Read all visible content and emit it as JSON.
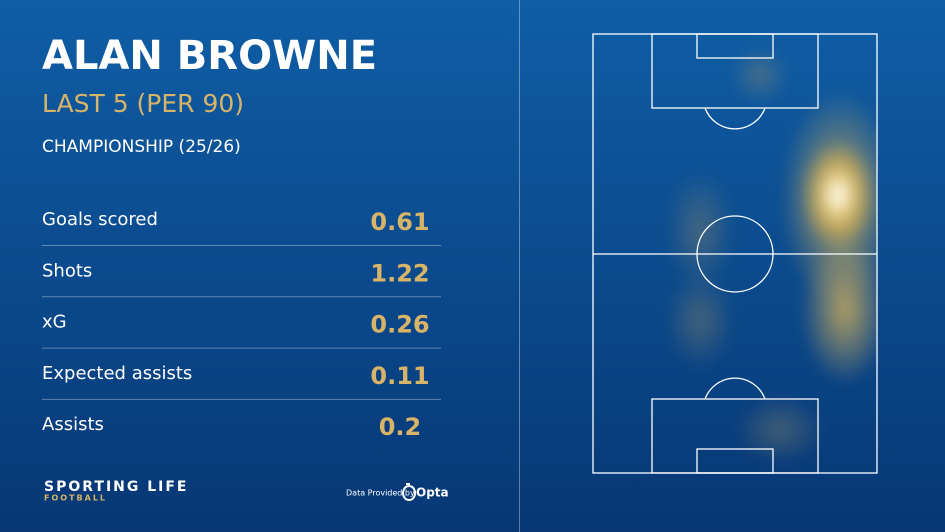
{
  "header": {
    "title": "ALAN BROWNE",
    "subtitle": "LAST 5 (PER 90)",
    "competition": "CHAMPIONSHIP (25/26)"
  },
  "stats": {
    "rows": [
      {
        "label": "Goals scored",
        "value": "0.61"
      },
      {
        "label": "Shots",
        "value": "1.22"
      },
      {
        "label": "xG",
        "value": "0.26"
      },
      {
        "label": "Expected assists",
        "value": "0.11"
      },
      {
        "label": "Assists",
        "value": "0.2"
      }
    ]
  },
  "footer": {
    "brand": "SPORTING LIFE",
    "brand_sub": "FOOTBALL",
    "credit": "Data Provided by",
    "provider": "Opta"
  }
}
